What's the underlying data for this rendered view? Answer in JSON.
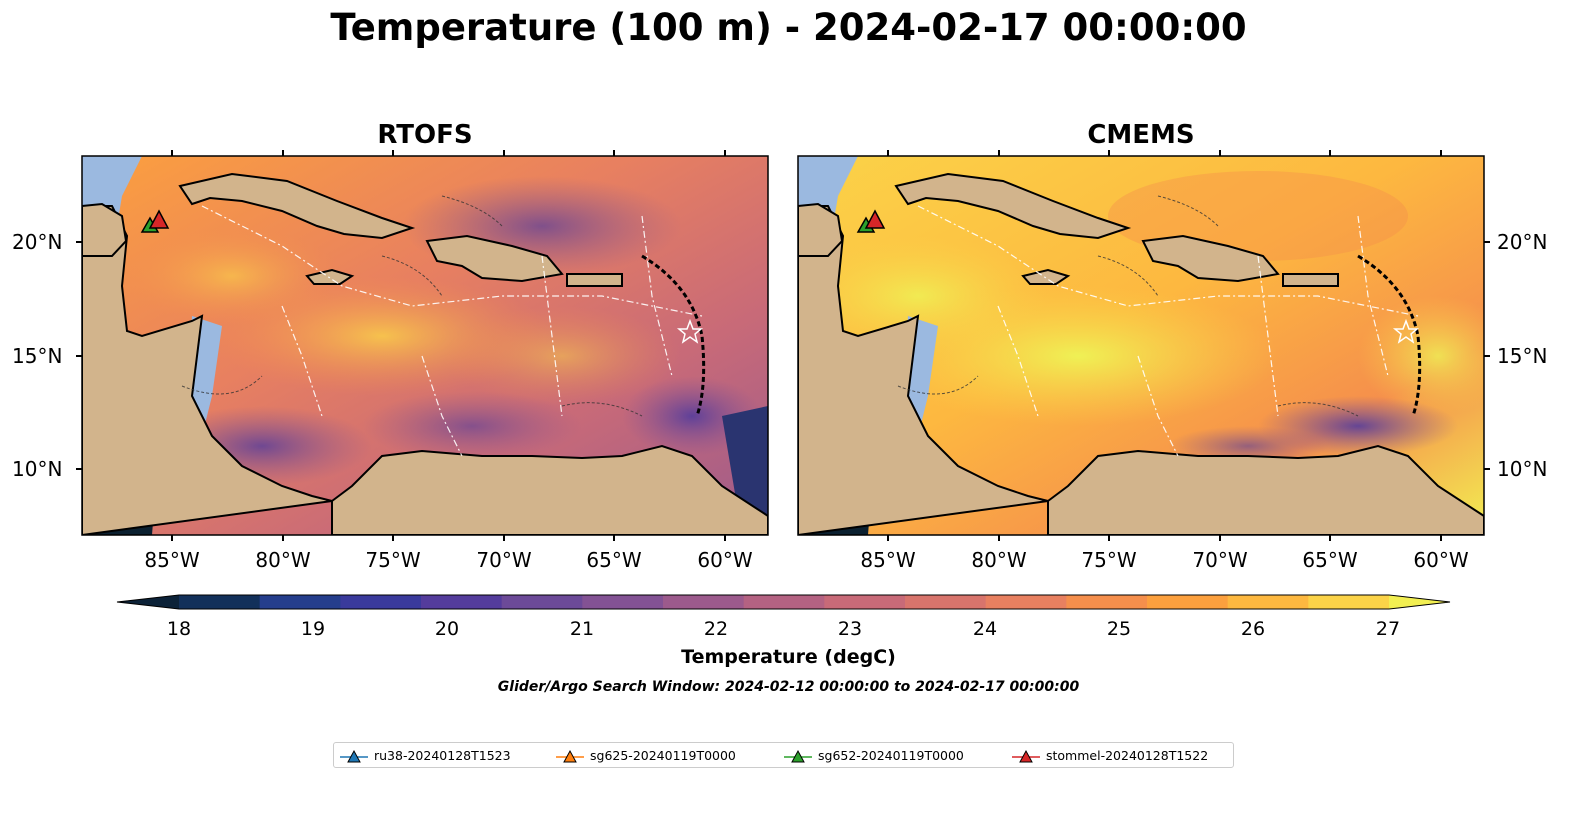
{
  "title": "Temperature (100 m) - 2024-02-17 00:00:00",
  "panels": [
    {
      "title": "RTOFS"
    },
    {
      "title": "CMEMS"
    }
  ],
  "lat_ticks": [
    "20°N",
    "15°N",
    "10°N"
  ],
  "lon_ticks": [
    "85°W",
    "80°W",
    "75°W",
    "70°W",
    "65°W",
    "60°W"
  ],
  "colorbar": {
    "label": "Temperature (degC)",
    "ticks": [
      "18",
      "19",
      "20",
      "21",
      "22",
      "23",
      "24",
      "25",
      "26",
      "27"
    ],
    "colors": [
      "#0c2238",
      "#12305a",
      "#253e8c",
      "#3a3a9c",
      "#543c9c",
      "#6c4a98",
      "#835294",
      "#9c5a8c",
      "#b46282",
      "#c86a78",
      "#d8746c",
      "#e88060",
      "#f58f4c",
      "#fca03e",
      "#fdb840",
      "#fbd348",
      "#f2ef52"
    ]
  },
  "search_window": "Glider/Argo Search Window: 2024-02-12 00:00:00 to 2024-02-17 00:00:00",
  "legend": [
    {
      "label": "ru38-20240128T1523",
      "color": "#1f77b4"
    },
    {
      "label": "sg625-20240119T0000",
      "color": "#ff7f0e"
    },
    {
      "label": "sg652-20240119T0000",
      "color": "#2ca02c"
    },
    {
      "label": "stommel-20240128T1522",
      "color": "#d62728"
    }
  ],
  "colors": {
    "land": "#d2b48c",
    "shelf": "#9bb9e0",
    "deep_water": "#0b2030"
  }
}
